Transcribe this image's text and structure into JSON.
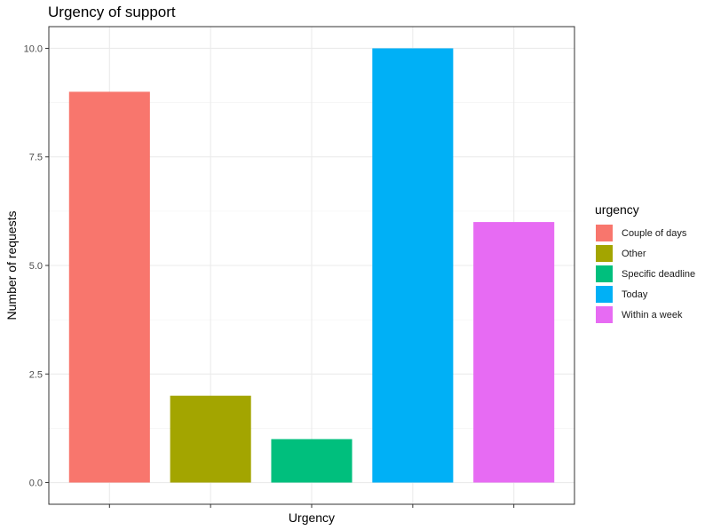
{
  "chart_data": {
    "type": "bar",
    "title": "Urgency of support",
    "xlabel": "Urgency",
    "ylabel": "Number of requests",
    "categories": [
      "Couple of days",
      "Other",
      "Specific deadline",
      "Today",
      "Within a week"
    ],
    "values": [
      9,
      2,
      1,
      10,
      6
    ],
    "colors": [
      "#F8766D",
      "#A3A500",
      "#00BF7D",
      "#00B0F6",
      "#E76BF3"
    ],
    "ylim": [
      -0.5,
      10.5
    ],
    "yticks": [
      0,
      2.5,
      5,
      7.5,
      10
    ],
    "ytick_labels": [
      "0.0",
      "2.5",
      "5.0",
      "7.5",
      "10.0"
    ],
    "x_tick_labels_shown": false,
    "grid": true,
    "legend": {
      "title": "urgency",
      "placement": "right",
      "entries": [
        "Couple of days",
        "Other",
        "Specific deadline",
        "Today",
        "Within a week"
      ]
    }
  }
}
